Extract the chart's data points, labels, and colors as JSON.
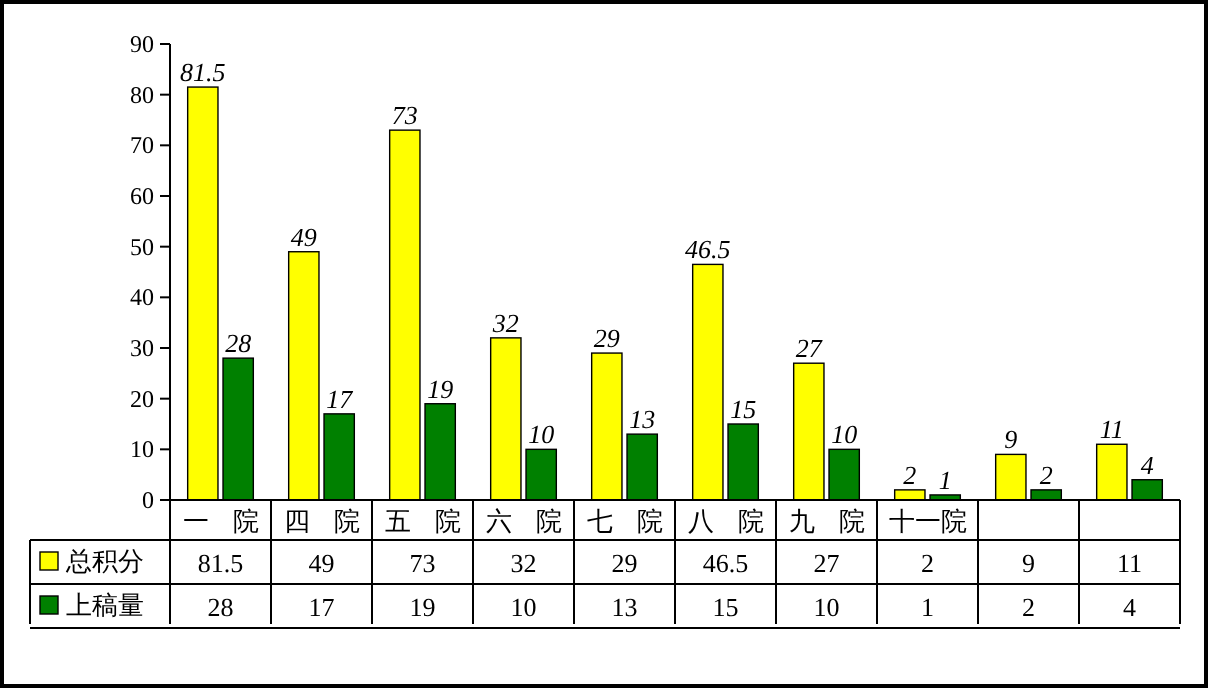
{
  "chart_data": {
    "type": "bar",
    "categories": [
      "一院",
      "四院",
      "五院",
      "六院",
      "七院",
      "八院",
      "九院",
      "十一院",
      null,
      null
    ],
    "series": [
      {
        "name": "总积分",
        "color": "#ffff00",
        "values": [
          81.5,
          49,
          73,
          32,
          29,
          46.5,
          27,
          2,
          9,
          11
        ],
        "value_labels": [
          "81.5",
          "49",
          "73",
          "32",
          "29",
          "46.5",
          "27",
          "2",
          "9",
          "11"
        ]
      },
      {
        "name": "上稿量",
        "color": "#008000",
        "values": [
          28,
          17,
          19,
          10,
          13,
          15,
          10,
          1,
          2,
          4
        ],
        "value_labels": [
          "28",
          "17",
          "19",
          "10",
          "13",
          "15",
          "10",
          "1",
          "2",
          "4"
        ]
      }
    ],
    "annotations": [
      "81.5",
      "49",
      "73",
      "32",
      "29",
      "46.5",
      "27",
      "2",
      "9",
      "11",
      "28",
      "17",
      "19",
      "10",
      "13",
      "15",
      "10",
      "1",
      "2",
      "4"
    ],
    "ylim": [
      0,
      90
    ],
    "yticks": [
      0,
      10,
      20,
      30,
      40,
      50,
      60,
      70,
      80,
      90
    ],
    "legend": "bottom",
    "grid": false
  }
}
